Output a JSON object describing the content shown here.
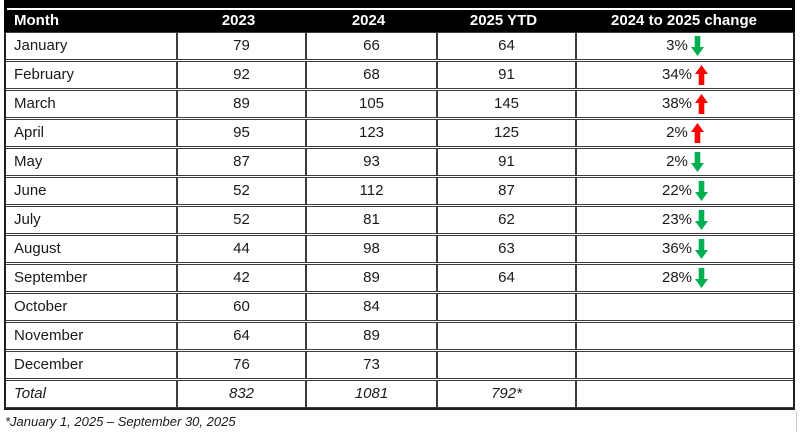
{
  "table": {
    "columns": [
      "Month",
      "2023",
      "2024",
      "2025 YTD",
      "2024 to 2025 change"
    ],
    "rows": [
      {
        "month": "January",
        "y2023": "79",
        "y2024": "66",
        "ytd2025": "64",
        "change": "3%",
        "direction": "down"
      },
      {
        "month": "February",
        "y2023": "92",
        "y2024": "68",
        "ytd2025": "91",
        "change": "34%",
        "direction": "up"
      },
      {
        "month": "March",
        "y2023": "89",
        "y2024": "105",
        "ytd2025": "145",
        "change": "38%",
        "direction": "up"
      },
      {
        "month": "April",
        "y2023": "95",
        "y2024": "123",
        "ytd2025": "125",
        "change": "2%",
        "direction": "up"
      },
      {
        "month": "May",
        "y2023": "87",
        "y2024": "93",
        "ytd2025": "91",
        "change": "2%",
        "direction": "down"
      },
      {
        "month": "June",
        "y2023": "52",
        "y2024": "112",
        "ytd2025": "87",
        "change": "22%",
        "direction": "down"
      },
      {
        "month": "July",
        "y2023": "52",
        "y2024": "81",
        "ytd2025": "62",
        "change": "23%",
        "direction": "down"
      },
      {
        "month": "August",
        "y2023": "44",
        "y2024": "98",
        "ytd2025": "63",
        "change": "36%",
        "direction": "down"
      },
      {
        "month": "September",
        "y2023": "42",
        "y2024": "89",
        "ytd2025": "64",
        "change": "28%",
        "direction": "down"
      },
      {
        "month": "October",
        "y2023": "60",
        "y2024": "84",
        "ytd2025": "",
        "change": "",
        "direction": ""
      },
      {
        "month": "November",
        "y2023": "64",
        "y2024": "89",
        "ytd2025": "",
        "change": "",
        "direction": ""
      },
      {
        "month": "December",
        "y2023": "76",
        "y2024": "73",
        "ytd2025": "",
        "change": "",
        "direction": ""
      }
    ],
    "total": {
      "label": "Total",
      "y2023": "832",
      "y2024": "1081",
      "ytd2025": "792*",
      "change": "",
      "direction": ""
    }
  },
  "footnote": "*January 1, 2025 – September 30, 2025",
  "colors": {
    "up_arrow": "#FF0000",
    "down_arrow": "#00B050",
    "header_bg": "#000000",
    "grid_line": "#3d3d3d"
  }
}
